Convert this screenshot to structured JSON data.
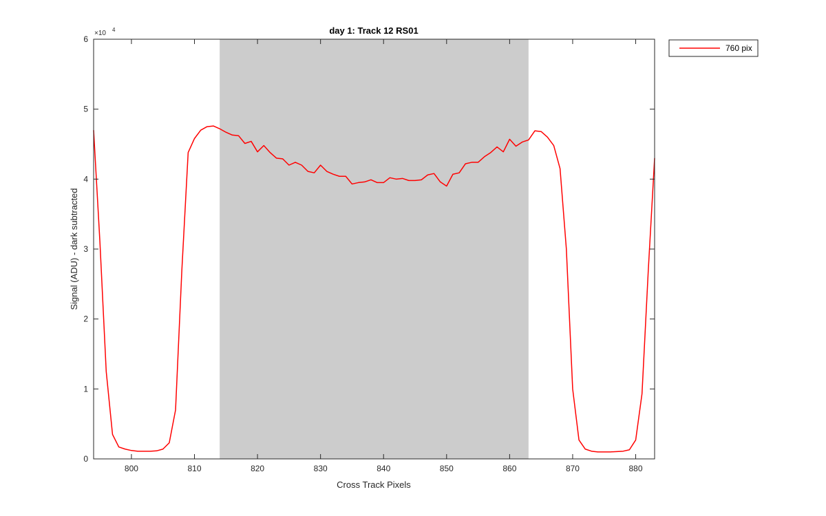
{
  "chart_data": {
    "type": "line",
    "title": "day 1: Track 12  RS01",
    "xlabel": "Cross Track Pixels",
    "ylabel": "Signal (ADU) - dark subtracted",
    "y_exponent_label": "×10",
    "y_exponent": "4",
    "xlim": [
      794,
      883
    ],
    "ylim": [
      0,
      60000
    ],
    "xticks": [
      800,
      810,
      820,
      830,
      840,
      850,
      860,
      870,
      880
    ],
    "yticks": [
      0,
      10000,
      20000,
      30000,
      40000,
      50000,
      60000
    ],
    "ytick_labels": [
      "0",
      "1",
      "2",
      "3",
      "4",
      "5",
      "6"
    ],
    "grid": false,
    "legend_position": "outside-top-right",
    "shaded_region": {
      "x_start": 814,
      "x_end": 863,
      "color": "#cccccc"
    },
    "series": [
      {
        "name": "760 pix",
        "color": "#ff0000",
        "x": [
          794,
          795,
          796,
          797,
          798,
          799,
          800,
          801,
          802,
          803,
          804,
          805,
          806,
          807,
          808,
          809,
          810,
          811,
          812,
          813,
          814,
          815,
          816,
          817,
          818,
          819,
          820,
          821,
          822,
          823,
          824,
          825,
          826,
          827,
          828,
          829,
          830,
          831,
          832,
          833,
          834,
          835,
          836,
          837,
          838,
          839,
          840,
          841,
          842,
          843,
          844,
          845,
          846,
          847,
          848,
          849,
          850,
          851,
          852,
          853,
          854,
          855,
          856,
          857,
          858,
          859,
          860,
          861,
          862,
          863,
          864,
          865,
          866,
          867,
          868,
          869,
          870,
          871,
          872,
          873,
          874,
          875,
          876,
          877,
          878,
          879,
          880,
          881,
          882,
          883
        ],
        "y": [
          47000,
          31000,
          12500,
          3500,
          1700,
          1400,
          1200,
          1100,
          1100,
          1100,
          1150,
          1400,
          2300,
          7000,
          27000,
          43800,
          45800,
          47000,
          47500,
          47600,
          47200,
          46700,
          46300,
          46200,
          45100,
          45400,
          43900,
          44800,
          43800,
          43000,
          42900,
          42000,
          42400,
          42000,
          41100,
          40900,
          42000,
          41100,
          40700,
          40400,
          40400,
          39300,
          39500,
          39600,
          39900,
          39500,
          39500,
          40200,
          40000,
          40100,
          39800,
          39800,
          39900,
          40600,
          40800,
          39600,
          39000,
          40700,
          40900,
          42200,
          42400,
          42400,
          43200,
          43800,
          44600,
          43900,
          45700,
          44700,
          45300,
          45600,
          46900,
          46800,
          46000,
          44800,
          41500,
          30000,
          10000,
          2700,
          1400,
          1100,
          1000,
          1000,
          1000,
          1050,
          1100,
          1300,
          2700,
          9300,
          27000,
          43000
        ]
      }
    ]
  }
}
